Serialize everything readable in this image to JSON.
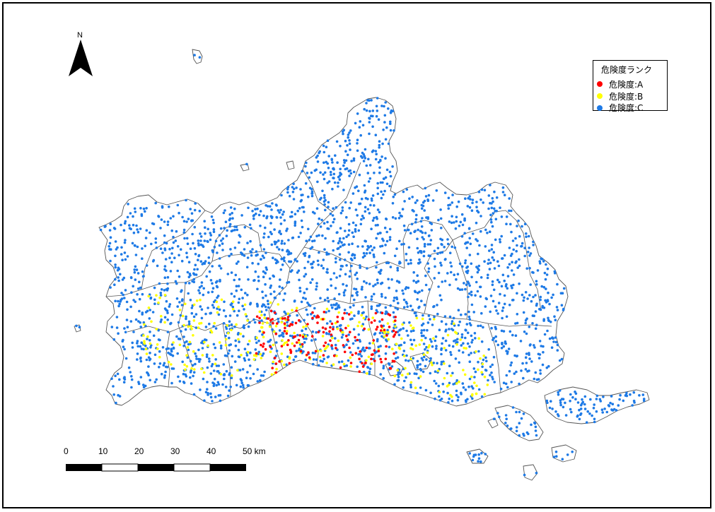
{
  "north_arrow": {
    "label": "N",
    "icon": "north-arrow-icon"
  },
  "legend": {
    "title": "危険度ランク",
    "items": [
      {
        "label": "危険度:A",
        "color": "#ff0000"
      },
      {
        "label": "危険度:B",
        "color": "#ffff00"
      },
      {
        "label": "危険度:C",
        "color": "#1e7ae6"
      }
    ]
  },
  "scale_bar": {
    "ticks": [
      "0",
      "10",
      "20",
      "30",
      "40",
      "50 km"
    ]
  },
  "colors": {
    "boundary": "#555555",
    "rank_a": "#ff0000",
    "rank_b": "#ffff00",
    "rank_c": "#1e7ae6"
  }
}
